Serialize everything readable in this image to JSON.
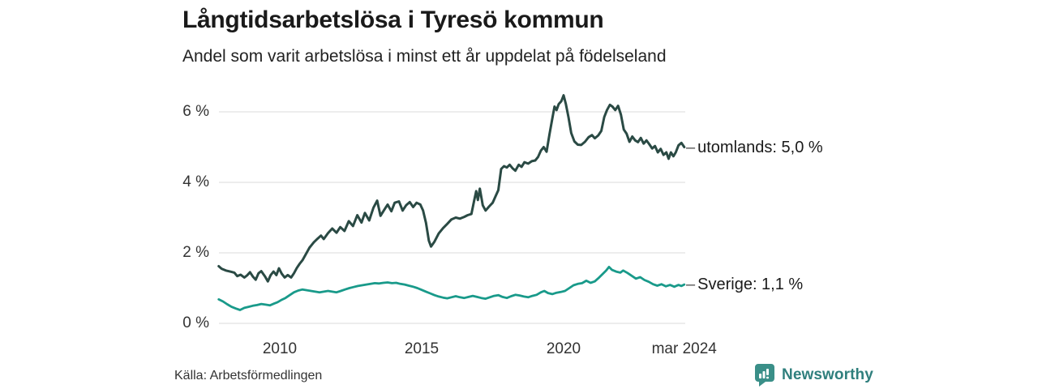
{
  "header": {
    "title": "Långtidsarbetslösa i Tyresö kommun",
    "subtitle": "Andel som varit arbetslösa i minst ett år uppdelat på födelseland"
  },
  "footer": {
    "source": "Källa: Arbetsförmedlingen",
    "brand": "Newsworthy"
  },
  "colors": {
    "utomlands_line": "#2a4a44",
    "sverige_line": "#199a8a",
    "grid": "#e2e2e2",
    "brand_teal": "#3a8f88",
    "brand_text": "#2f7f7d"
  },
  "chart_data": {
    "type": "line",
    "title": "Långtidsarbetslösa i Tyresö kommun",
    "subtitle": "Andel som varit arbetslösa i minst ett år uppdelat på födelseland",
    "grid": true,
    "legend_position": "right-end-labels",
    "x_axis": {
      "range": [
        2007.85,
        2024.25
      ],
      "ticks": [
        {
          "label": "2010",
          "year": 2010
        },
        {
          "label": "2015",
          "year": 2015
        },
        {
          "label": "2020",
          "year": 2020
        },
        {
          "label": "mar 2024",
          "year": 2024.25
        }
      ]
    },
    "y_axis": {
      "unit": "%",
      "range": [
        0,
        6.6
      ],
      "ticks": [
        {
          "label": "0 %",
          "value": 0
        },
        {
          "label": "2 %",
          "value": 2
        },
        {
          "label": "4 %",
          "value": 4
        },
        {
          "label": "6 %",
          "value": 6
        }
      ]
    },
    "series": [
      {
        "name": "utomlands",
        "end_label": "utomlands: 5,0 %",
        "last_value": 5.0,
        "color": "#2a4a44",
        "stroke_width": 3,
        "points": [
          [
            2007.85,
            1.62
          ],
          [
            2007.95,
            1.55
          ],
          [
            2008.1,
            1.5
          ],
          [
            2008.25,
            1.47
          ],
          [
            2008.4,
            1.44
          ],
          [
            2008.5,
            1.34
          ],
          [
            2008.62,
            1.38
          ],
          [
            2008.75,
            1.3
          ],
          [
            2008.85,
            1.36
          ],
          [
            2008.95,
            1.45
          ],
          [
            2009.05,
            1.33
          ],
          [
            2009.15,
            1.24
          ],
          [
            2009.25,
            1.42
          ],
          [
            2009.35,
            1.48
          ],
          [
            2009.48,
            1.33
          ],
          [
            2009.58,
            1.19
          ],
          [
            2009.68,
            1.37
          ],
          [
            2009.78,
            1.47
          ],
          [
            2009.88,
            1.37
          ],
          [
            2009.97,
            1.56
          ],
          [
            2010.07,
            1.41
          ],
          [
            2010.17,
            1.3
          ],
          [
            2010.28,
            1.37
          ],
          [
            2010.4,
            1.3
          ],
          [
            2010.5,
            1.42
          ],
          [
            2010.6,
            1.57
          ],
          [
            2010.7,
            1.69
          ],
          [
            2010.8,
            1.79
          ],
          [
            2010.93,
            1.98
          ],
          [
            2011.05,
            2.15
          ],
          [
            2011.2,
            2.3
          ],
          [
            2011.33,
            2.4
          ],
          [
            2011.45,
            2.49
          ],
          [
            2011.55,
            2.39
          ],
          [
            2011.7,
            2.56
          ],
          [
            2011.85,
            2.69
          ],
          [
            2012.0,
            2.57
          ],
          [
            2012.13,
            2.73
          ],
          [
            2012.28,
            2.62
          ],
          [
            2012.43,
            2.9
          ],
          [
            2012.58,
            2.76
          ],
          [
            2012.73,
            3.07
          ],
          [
            2012.88,
            2.86
          ],
          [
            2013.0,
            3.13
          ],
          [
            2013.15,
            2.92
          ],
          [
            2013.3,
            3.28
          ],
          [
            2013.43,
            3.48
          ],
          [
            2013.55,
            3.05
          ],
          [
            2013.68,
            3.22
          ],
          [
            2013.8,
            3.37
          ],
          [
            2013.93,
            3.18
          ],
          [
            2014.05,
            3.42
          ],
          [
            2014.2,
            3.46
          ],
          [
            2014.33,
            3.2
          ],
          [
            2014.45,
            3.35
          ],
          [
            2014.58,
            3.44
          ],
          [
            2014.7,
            3.3
          ],
          [
            2014.82,
            3.42
          ],
          [
            2014.95,
            3.37
          ],
          [
            2015.05,
            3.2
          ],
          [
            2015.15,
            2.85
          ],
          [
            2015.25,
            2.35
          ],
          [
            2015.33,
            2.18
          ],
          [
            2015.45,
            2.32
          ],
          [
            2015.6,
            2.55
          ],
          [
            2015.75,
            2.7
          ],
          [
            2015.9,
            2.82
          ],
          [
            2016.05,
            2.95
          ],
          [
            2016.2,
            3.0
          ],
          [
            2016.35,
            2.97
          ],
          [
            2016.5,
            3.02
          ],
          [
            2016.62,
            3.07
          ],
          [
            2016.75,
            3.1
          ],
          [
            2016.85,
            3.48
          ],
          [
            2016.92,
            3.75
          ],
          [
            2016.98,
            3.5
          ],
          [
            2017.05,
            3.82
          ],
          [
            2017.15,
            3.35
          ],
          [
            2017.25,
            3.2
          ],
          [
            2017.38,
            3.32
          ],
          [
            2017.5,
            3.42
          ],
          [
            2017.6,
            3.6
          ],
          [
            2017.7,
            3.78
          ],
          [
            2017.8,
            4.38
          ],
          [
            2017.9,
            4.46
          ],
          [
            2018.0,
            4.42
          ],
          [
            2018.1,
            4.5
          ],
          [
            2018.2,
            4.4
          ],
          [
            2018.3,
            4.33
          ],
          [
            2018.42,
            4.5
          ],
          [
            2018.52,
            4.44
          ],
          [
            2018.62,
            4.57
          ],
          [
            2018.75,
            4.53
          ],
          [
            2018.88,
            4.6
          ],
          [
            2019.0,
            4.62
          ],
          [
            2019.1,
            4.72
          ],
          [
            2019.2,
            4.9
          ],
          [
            2019.3,
            5.0
          ],
          [
            2019.4,
            4.87
          ],
          [
            2019.5,
            5.35
          ],
          [
            2019.6,
            5.8
          ],
          [
            2019.68,
            6.15
          ],
          [
            2019.75,
            6.05
          ],
          [
            2019.83,
            6.22
          ],
          [
            2019.92,
            6.3
          ],
          [
            2020.0,
            6.47
          ],
          [
            2020.08,
            6.22
          ],
          [
            2020.17,
            5.85
          ],
          [
            2020.27,
            5.4
          ],
          [
            2020.38,
            5.16
          ],
          [
            2020.5,
            5.07
          ],
          [
            2020.62,
            5.06
          ],
          [
            2020.75,
            5.15
          ],
          [
            2020.88,
            5.28
          ],
          [
            2021.0,
            5.34
          ],
          [
            2021.1,
            5.25
          ],
          [
            2021.22,
            5.33
          ],
          [
            2021.33,
            5.46
          ],
          [
            2021.43,
            5.85
          ],
          [
            2021.53,
            6.05
          ],
          [
            2021.63,
            6.2
          ],
          [
            2021.72,
            6.15
          ],
          [
            2021.82,
            6.05
          ],
          [
            2021.92,
            6.17
          ],
          [
            2022.02,
            5.92
          ],
          [
            2022.12,
            5.5
          ],
          [
            2022.22,
            5.38
          ],
          [
            2022.32,
            5.15
          ],
          [
            2022.42,
            5.3
          ],
          [
            2022.52,
            5.19
          ],
          [
            2022.62,
            5.14
          ],
          [
            2022.72,
            5.26
          ],
          [
            2022.82,
            5.1
          ],
          [
            2022.92,
            5.19
          ],
          [
            2023.02,
            5.08
          ],
          [
            2023.12,
            4.96
          ],
          [
            2023.22,
            5.03
          ],
          [
            2023.32,
            4.85
          ],
          [
            2023.42,
            4.95
          ],
          [
            2023.52,
            4.78
          ],
          [
            2023.62,
            4.85
          ],
          [
            2023.7,
            4.67
          ],
          [
            2023.78,
            4.85
          ],
          [
            2023.87,
            4.74
          ],
          [
            2023.95,
            4.85
          ],
          [
            2024.05,
            5.05
          ],
          [
            2024.15,
            5.12
          ],
          [
            2024.25,
            5.0
          ]
        ]
      },
      {
        "name": "Sverige",
        "end_label": "Sverige: 1,1 %",
        "last_value": 1.1,
        "color": "#199a8a",
        "stroke_width": 2.8,
        "points": [
          [
            2007.85,
            0.68
          ],
          [
            2008.0,
            0.62
          ],
          [
            2008.15,
            0.54
          ],
          [
            2008.3,
            0.47
          ],
          [
            2008.45,
            0.42
          ],
          [
            2008.6,
            0.38
          ],
          [
            2008.75,
            0.44
          ],
          [
            2008.9,
            0.47
          ],
          [
            2009.05,
            0.5
          ],
          [
            2009.2,
            0.52
          ],
          [
            2009.35,
            0.55
          ],
          [
            2009.5,
            0.53
          ],
          [
            2009.65,
            0.51
          ],
          [
            2009.8,
            0.56
          ],
          [
            2009.92,
            0.6
          ],
          [
            2010.05,
            0.66
          ],
          [
            2010.2,
            0.72
          ],
          [
            2010.35,
            0.8
          ],
          [
            2010.5,
            0.88
          ],
          [
            2010.65,
            0.93
          ],
          [
            2010.8,
            0.96
          ],
          [
            2010.95,
            0.94
          ],
          [
            2011.1,
            0.92
          ],
          [
            2011.25,
            0.9
          ],
          [
            2011.4,
            0.88
          ],
          [
            2011.55,
            0.9
          ],
          [
            2011.7,
            0.92
          ],
          [
            2011.85,
            0.9
          ],
          [
            2012.0,
            0.88
          ],
          [
            2012.15,
            0.92
          ],
          [
            2012.3,
            0.96
          ],
          [
            2012.45,
            1.0
          ],
          [
            2012.6,
            1.03
          ],
          [
            2012.75,
            1.06
          ],
          [
            2012.9,
            1.08
          ],
          [
            2013.05,
            1.1
          ],
          [
            2013.2,
            1.12
          ],
          [
            2013.35,
            1.14
          ],
          [
            2013.5,
            1.13
          ],
          [
            2013.65,
            1.15
          ],
          [
            2013.8,
            1.16
          ],
          [
            2013.95,
            1.14
          ],
          [
            2014.1,
            1.15
          ],
          [
            2014.25,
            1.12
          ],
          [
            2014.4,
            1.1
          ],
          [
            2014.55,
            1.07
          ],
          [
            2014.7,
            1.04
          ],
          [
            2014.85,
            1.0
          ],
          [
            2015.0,
            0.95
          ],
          [
            2015.15,
            0.9
          ],
          [
            2015.3,
            0.85
          ],
          [
            2015.45,
            0.8
          ],
          [
            2015.6,
            0.76
          ],
          [
            2015.75,
            0.73
          ],
          [
            2015.9,
            0.71
          ],
          [
            2016.05,
            0.74
          ],
          [
            2016.2,
            0.77
          ],
          [
            2016.35,
            0.74
          ],
          [
            2016.5,
            0.72
          ],
          [
            2016.65,
            0.75
          ],
          [
            2016.8,
            0.78
          ],
          [
            2016.95,
            0.75
          ],
          [
            2017.1,
            0.72
          ],
          [
            2017.25,
            0.7
          ],
          [
            2017.4,
            0.74
          ],
          [
            2017.55,
            0.78
          ],
          [
            2017.7,
            0.8
          ],
          [
            2017.85,
            0.75
          ],
          [
            2018.0,
            0.72
          ],
          [
            2018.15,
            0.77
          ],
          [
            2018.3,
            0.81
          ],
          [
            2018.45,
            0.79
          ],
          [
            2018.6,
            0.76
          ],
          [
            2018.75,
            0.74
          ],
          [
            2018.9,
            0.78
          ],
          [
            2019.05,
            0.81
          ],
          [
            2019.2,
            0.88
          ],
          [
            2019.32,
            0.92
          ],
          [
            2019.45,
            0.86
          ],
          [
            2019.6,
            0.83
          ],
          [
            2019.75,
            0.87
          ],
          [
            2019.9,
            0.89
          ],
          [
            2020.05,
            0.92
          ],
          [
            2020.2,
            1.0
          ],
          [
            2020.35,
            1.08
          ],
          [
            2020.5,
            1.12
          ],
          [
            2020.65,
            1.14
          ],
          [
            2020.8,
            1.21
          ],
          [
            2020.95,
            1.15
          ],
          [
            2021.1,
            1.19
          ],
          [
            2021.25,
            1.3
          ],
          [
            2021.4,
            1.42
          ],
          [
            2021.5,
            1.5
          ],
          [
            2021.6,
            1.6
          ],
          [
            2021.7,
            1.52
          ],
          [
            2021.85,
            1.47
          ],
          [
            2022.0,
            1.44
          ],
          [
            2022.1,
            1.5
          ],
          [
            2022.25,
            1.43
          ],
          [
            2022.4,
            1.35
          ],
          [
            2022.55,
            1.27
          ],
          [
            2022.7,
            1.31
          ],
          [
            2022.85,
            1.23
          ],
          [
            2023.0,
            1.18
          ],
          [
            2023.15,
            1.11
          ],
          [
            2023.3,
            1.07
          ],
          [
            2023.45,
            1.11
          ],
          [
            2023.6,
            1.05
          ],
          [
            2023.75,
            1.09
          ],
          [
            2023.9,
            1.04
          ],
          [
            2024.05,
            1.09
          ],
          [
            2024.15,
            1.06
          ],
          [
            2024.25,
            1.1
          ]
        ]
      }
    ]
  }
}
